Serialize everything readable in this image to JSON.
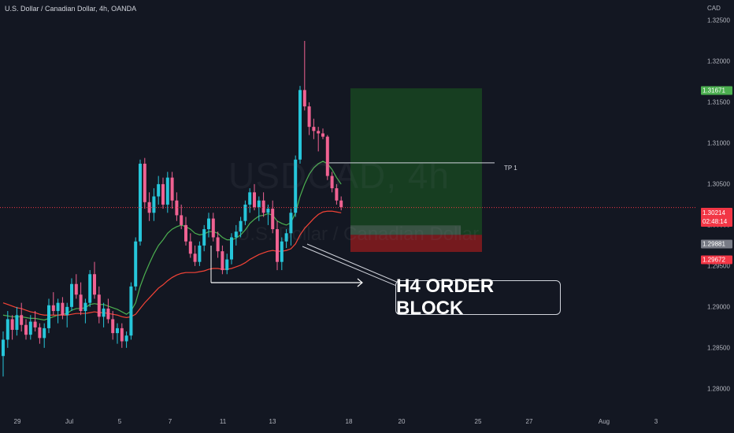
{
  "header": {
    "title": "U.S. Dollar / Canadian Dollar, 4h, OANDA"
  },
  "axis": {
    "unit": "CAD"
  },
  "watermark": {
    "symbol": "USDCAD, 4h",
    "name": "U.S. Dollar / Canadian Dollar"
  },
  "colors": {
    "background": "#131722",
    "up": "#26c6da",
    "down": "#f06292",
    "ema_fast": "#4caf50",
    "ema_slow": "#f44336",
    "profit_zone": "#1b5e20",
    "loss_zone": "#b71c1c"
  },
  "badges": {
    "target": "1.31671",
    "price": "1.30214",
    "countdown": "02:48:14",
    "entry": "1.29881",
    "stop": "1.29672"
  },
  "annotations": {
    "tp_label": "TP 1",
    "order_block": "H4 ORDER BLOCK"
  },
  "chart_data": {
    "type": "candlestick",
    "title": "U.S. Dollar / Canadian Dollar, 4h, OANDA",
    "ylabel": "CAD",
    "ylim": [
      1.277,
      1.3275
    ],
    "y_ticks": [
      "1.32500",
      "1.32000",
      "1.31500",
      "1.31000",
      "1.30500",
      "1.30000",
      "1.29500",
      "1.29000",
      "1.28500",
      "1.28000"
    ],
    "x_ticks": [
      "29",
      "Jul",
      "5",
      "7",
      "11",
      "13",
      "18",
      "20",
      "25",
      "27",
      "Aug",
      "3"
    ],
    "candles": [
      [
        1.284,
        1.287,
        1.2815,
        1.286
      ],
      [
        1.286,
        1.2895,
        1.285,
        1.2885
      ],
      [
        1.2885,
        1.289,
        1.286,
        1.2872
      ],
      [
        1.2872,
        1.29,
        1.2865,
        1.289
      ],
      [
        1.289,
        1.2905,
        1.287,
        1.2878
      ],
      [
        1.2878,
        1.2885,
        1.286,
        1.2866
      ],
      [
        1.2866,
        1.289,
        1.286,
        1.2882
      ],
      [
        1.2882,
        1.2895,
        1.287,
        1.2875
      ],
      [
        1.2875,
        1.288,
        1.2855,
        1.2862
      ],
      [
        1.2862,
        1.288,
        1.285,
        1.2874
      ],
      [
        1.2874,
        1.291,
        1.2868,
        1.2902
      ],
      [
        1.2902,
        1.2918,
        1.289,
        1.2895
      ],
      [
        1.2895,
        1.291,
        1.288,
        1.2905
      ],
      [
        1.2905,
        1.2912,
        1.2885,
        1.289
      ],
      [
        1.289,
        1.2905,
        1.2875,
        1.29
      ],
      [
        1.29,
        1.2935,
        1.2895,
        1.2928
      ],
      [
        1.2928,
        1.294,
        1.291,
        1.2915
      ],
      [
        1.2915,
        1.293,
        1.289,
        1.2895
      ],
      [
        1.2895,
        1.291,
        1.288,
        1.2905
      ],
      [
        1.2905,
        1.2945,
        1.29,
        1.294
      ],
      [
        1.294,
        1.2955,
        1.291,
        1.2915
      ],
      [
        1.2915,
        1.2925,
        1.288,
        1.2888
      ],
      [
        1.2888,
        1.2905,
        1.2875,
        1.2898
      ],
      [
        1.2898,
        1.291,
        1.288,
        1.2885
      ],
      [
        1.2885,
        1.2895,
        1.286,
        1.2868
      ],
      [
        1.2868,
        1.288,
        1.2855,
        1.2874
      ],
      [
        1.2874,
        1.288,
        1.285,
        1.2858
      ],
      [
        1.2858,
        1.287,
        1.285,
        1.2865
      ],
      [
        1.2865,
        1.293,
        1.286,
        1.2925
      ],
      [
        1.2925,
        1.2985,
        1.292,
        1.298
      ],
      [
        1.298,
        1.308,
        1.2975,
        1.3075
      ],
      [
        1.3075,
        1.3082,
        1.302,
        1.3028
      ],
      [
        1.3028,
        1.304,
        1.3005,
        1.3015
      ],
      [
        1.3015,
        1.3045,
        1.3005,
        1.3035
      ],
      [
        1.3035,
        1.306,
        1.3025,
        1.305
      ],
      [
        1.305,
        1.3058,
        1.302,
        1.3025
      ],
      [
        1.3025,
        1.3065,
        1.3015,
        1.3058
      ],
      [
        1.3058,
        1.3065,
        1.302,
        1.303
      ],
      [
        1.303,
        1.304,
        1.3005,
        1.3012
      ],
      [
        1.3012,
        1.3025,
        1.2995,
        1.3
      ],
      [
        1.3,
        1.301,
        1.2975,
        1.298
      ],
      [
        1.298,
        1.299,
        1.296,
        1.2965
      ],
      [
        1.2965,
        1.2975,
        1.295,
        1.2955
      ],
      [
        1.2955,
        1.298,
        1.295,
        1.2975
      ],
      [
        1.2975,
        1.3,
        1.2968,
        1.2995
      ],
      [
        1.2995,
        1.3015,
        1.2985,
        1.3008
      ],
      [
        1.3008,
        1.3015,
        1.298,
        1.2985
      ],
      [
        1.2985,
        1.2992,
        1.296,
        1.2968
      ],
      [
        1.2968,
        1.2975,
        1.294,
        1.2945
      ],
      [
        1.2945,
        1.2965,
        1.294,
        1.2958
      ],
      [
        1.2958,
        1.299,
        1.2952,
        1.2985
      ],
      [
        1.2985,
        1.3,
        1.2975,
        1.2992
      ],
      [
        1.2992,
        1.301,
        1.2985,
        1.3005
      ],
      [
        1.3005,
        1.303,
        1.3,
        1.3025
      ],
      [
        1.3025,
        1.3045,
        1.3015,
        1.304
      ],
      [
        1.304,
        1.305,
        1.3018,
        1.3022
      ],
      [
        1.3022,
        1.3035,
        1.3005,
        1.303
      ],
      [
        1.303,
        1.304,
        1.301,
        1.3015
      ],
      [
        1.3015,
        1.3025,
        1.3,
        1.302
      ],
      [
        1.302,
        1.303,
        1.299,
        1.2995
      ],
      [
        1.2995,
        1.3005,
        1.2945,
        1.2955
      ],
      [
        1.2955,
        1.2985,
        1.2945,
        1.298
      ],
      [
        1.298,
        1.2995,
        1.2972,
        1.299
      ],
      [
        1.299,
        1.302,
        1.2975,
        1.3015
      ],
      [
        1.3015,
        1.3085,
        1.301,
        1.308
      ],
      [
        1.308,
        1.317,
        1.3075,
        1.3165
      ],
      [
        1.3165,
        1.3225,
        1.314,
        1.3145
      ],
      [
        1.3145,
        1.315,
        1.311,
        1.312
      ],
      [
        1.312,
        1.313,
        1.3105,
        1.3115
      ],
      [
        1.3115,
        1.312,
        1.309,
        1.3112
      ],
      [
        1.3112,
        1.3118,
        1.3105,
        1.3108
      ],
      [
        1.3108,
        1.311,
        1.3055,
        1.306
      ],
      [
        1.306,
        1.3065,
        1.304,
        1.3045
      ],
      [
        1.3045,
        1.305,
        1.3025,
        1.303
      ],
      [
        1.303,
        1.3035,
        1.3018,
        1.3022
      ]
    ],
    "series": [
      {
        "name": "",
        "type": "ema_fast",
        "values": [
          1.289,
          1.2889,
          1.2888,
          1.2888,
          1.2888,
          1.2887,
          1.2886,
          1.2886,
          1.2885,
          1.2884,
          1.2886,
          1.2888,
          1.289,
          1.2891,
          1.2892,
          1.2896,
          1.2898,
          1.2898,
          1.2899,
          1.2903,
          1.2904,
          1.2903,
          1.2903,
          1.2901,
          1.2899,
          1.2897,
          1.2894,
          1.2891,
          1.2895,
          1.2905,
          1.2925,
          1.294,
          1.2953,
          1.2965,
          1.2975,
          1.2982,
          1.299,
          1.2995,
          1.2998,
          1.3,
          1.2998,
          1.2995,
          1.299,
          1.2988,
          1.2989,
          1.2992,
          1.2992,
          1.299,
          1.2985,
          1.2982,
          1.2982,
          1.2984,
          1.2988,
          1.2994,
          1.3002,
          1.3007,
          1.3011,
          1.3012,
          1.3014,
          1.3012,
          1.3005,
          1.3002,
          1.3,
          1.3003,
          1.3015,
          1.3035,
          1.305,
          1.3062,
          1.307,
          1.3075,
          1.3078,
          1.3075,
          1.3068,
          1.3058,
          1.305
        ]
      },
      {
        "name": "",
        "type": "ema_slow",
        "values": [
          1.2905,
          1.2903,
          1.2901,
          1.2899,
          1.2898,
          1.2896,
          1.2894,
          1.2893,
          1.2891,
          1.289,
          1.289,
          1.289,
          1.289,
          1.289,
          1.289,
          1.2891,
          1.2892,
          1.2892,
          1.2892,
          1.2893,
          1.2894,
          1.2893,
          1.2893,
          1.2892,
          1.2891,
          1.289,
          1.2888,
          1.2887,
          1.2888,
          1.2891,
          1.2898,
          1.2905,
          1.2911,
          1.2917,
          1.2923,
          1.2927,
          1.2932,
          1.2936,
          1.2939,
          1.2941,
          1.2942,
          1.2942,
          1.2942,
          1.2943,
          1.2944,
          1.2946,
          1.2947,
          1.2947,
          1.2946,
          1.2946,
          1.2947,
          1.2949,
          1.2951,
          1.2954,
          1.2958,
          1.2961,
          1.2964,
          1.2966,
          1.2968,
          1.2969,
          1.2968,
          1.2968,
          1.2969,
          1.2971,
          1.2977,
          1.2988,
          1.2996,
          1.3002,
          1.3008,
          1.3013,
          1.3016,
          1.3017,
          1.3017,
          1.3016,
          1.3015
        ]
      }
    ],
    "price_line": 1.30214,
    "position": {
      "entry": 1.29881,
      "target": 1.31671,
      "stop": 1.29672
    },
    "tp1_level": 1.3076,
    "order_block_level": 1.294
  }
}
